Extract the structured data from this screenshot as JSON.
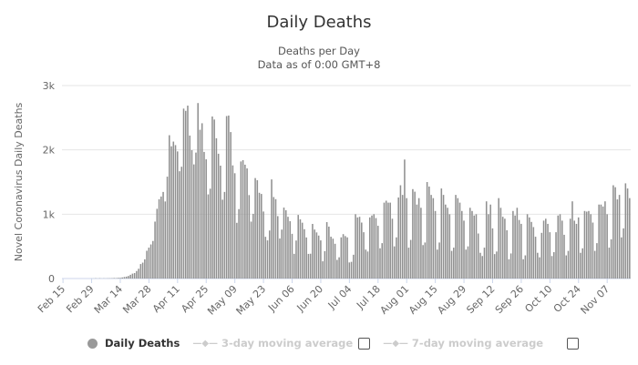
{
  "chart_data": {
    "type": "bar",
    "title": "Daily Deaths",
    "subtitle": "Deaths per Day",
    "subtitle2": "Data as of 0:00 GMT+8",
    "ylabel": "Novel Coronavirus Daily Deaths",
    "xlabel": "",
    "ylim": [
      0,
      3000
    ],
    "yticks": [
      {
        "v": 0,
        "label": "0"
      },
      {
        "v": 1000,
        "label": "1k"
      },
      {
        "v": 2000,
        "label": "2k"
      },
      {
        "v": 3000,
        "label": "3k"
      }
    ],
    "start_date": "Feb 15",
    "xtick_every_days": 14,
    "xticks": [
      "Feb 15",
      "Feb 29",
      "Mar 14",
      "Mar 28",
      "Apr 11",
      "Apr 25",
      "May 09",
      "May 23",
      "Jun 06",
      "Jun 20",
      "Jul 04",
      "Jul 18",
      "Aug 01",
      "Aug 15",
      "Aug 29",
      "Sep 12",
      "Sep 26",
      "Oct 10",
      "Oct 24",
      "Nov 07"
    ],
    "bar_color": "#909090",
    "values": [
      0,
      0,
      0,
      0,
      0,
      0,
      0,
      0,
      0,
      0,
      0,
      0,
      0,
      0,
      1,
      1,
      4,
      1,
      4,
      1,
      3,
      2,
      4,
      4,
      5,
      8,
      7,
      11,
      11,
      17,
      24,
      30,
      40,
      58,
      76,
      85,
      117,
      152,
      225,
      247,
      299,
      432,
      480,
      530,
      584,
      885,
      1084,
      1233,
      1275,
      1346,
      1198,
      1584,
      2228,
      2056,
      2129,
      2074,
      1976,
      1668,
      1738,
      2642,
      2607,
      2688,
      2223,
      1996,
      1774,
      1958,
      2728,
      2313,
      2414,
      1968,
      1853,
      1308,
      1397,
      2519,
      2472,
      2181,
      1940,
      1755,
      1226,
      1346,
      2526,
      2534,
      2277,
      1759,
      1637,
      866,
      1079,
      1820,
      1840,
      1770,
      1712,
      1297,
      885,
      1006,
      1562,
      1528,
      1333,
      1315,
      1042,
      649,
      593,
      747,
      1541,
      1267,
      1234,
      970,
      622,
      761,
      1103,
      1061,
      960,
      891,
      695,
      384,
      591,
      989,
      920,
      868,
      767,
      639,
      383,
      386,
      849,
      762,
      717,
      668,
      593,
      268,
      426,
      877,
      807,
      650,
      620,
      540,
      290,
      330,
      640,
      690,
      660,
      640,
      250,
      260,
      370,
      1000,
      950,
      960,
      870,
      720,
      450,
      420,
      950,
      980,
      1000,
      940,
      820,
      470,
      550,
      1180,
      1210,
      1180,
      1180,
      930,
      500,
      640,
      1260,
      1450,
      1300,
      1850,
      1250,
      480,
      600,
      1390,
      1350,
      1150,
      1250,
      1100,
      520,
      560,
      1500,
      1430,
      1300,
      1250,
      1050,
      450,
      560,
      1400,
      1300,
      1150,
      1100,
      1000,
      430,
      480,
      1300,
      1250,
      1180,
      1050,
      900,
      450,
      500,
      1100,
      1050,
      980,
      1000,
      700,
      400,
      350,
      480,
      1200,
      1000,
      1150,
      780,
      380,
      420,
      1250,
      1100,
      960,
      930,
      750,
      300,
      390,
      1050,
      980,
      1100,
      910,
      850,
      300,
      360,
      1000,
      950,
      880,
      800,
      650,
      400,
      330,
      710,
      900,
      930,
      850,
      720,
      350,
      410,
      720,
      980,
      1000,
      900,
      680,
      360,
      430,
      930,
      1200,
      900,
      850,
      950,
      400,
      470,
      1050,
      1040,
      1050,
      1000,
      870,
      430,
      550,
      1150,
      1150,
      1120,
      1200,
      1000,
      480,
      610,
      1450,
      1420,
      1230,
      1300,
      640,
      780,
      1480,
      1400,
      1250
    ],
    "legend": [
      {
        "label": "Daily Deaths",
        "active": true
      },
      {
        "label": "3-day moving average",
        "active": false
      },
      {
        "label": "7-day moving average",
        "active": false
      }
    ]
  }
}
